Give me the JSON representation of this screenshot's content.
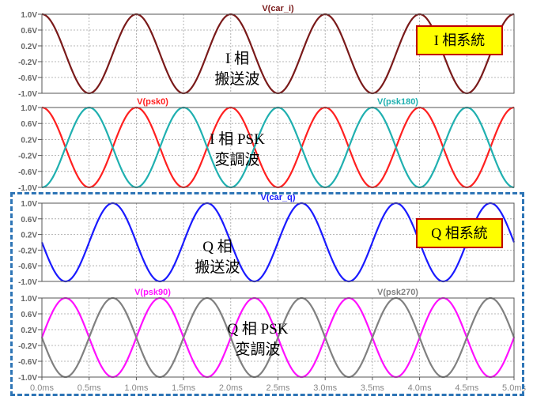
{
  "chart_data": [
    {
      "type": "line",
      "title": "V(car_i)",
      "ylim": [
        -1.0,
        1.0
      ],
      "yticks": [
        "1.0V",
        "0.6V",
        "0.2V",
        "-0.2V",
        "-0.6V",
        "-1.0V"
      ],
      "xlim": [
        0,
        5
      ],
      "grid": true,
      "series": [
        {
          "name": "V(car_i)",
          "color": "#7a1a1a",
          "amplitude": 1.0,
          "frequency_khz": 1.0,
          "phase_deg": 90
        }
      ]
    },
    {
      "type": "line",
      "ylim": [
        -1.0,
        1.0
      ],
      "yticks": [
        "1.0V",
        "0.6V",
        "0.2V",
        "-0.2V",
        "-0.6V",
        "-1.0V"
      ],
      "xlim": [
        0,
        5
      ],
      "grid": true,
      "series": [
        {
          "name": "V(psk0)",
          "color": "#ff2020",
          "amplitude": 1.0,
          "frequency_khz": 1.0,
          "phase_deg": 90
        },
        {
          "name": "V(psk180)",
          "color": "#20b0b0",
          "amplitude": 1.0,
          "frequency_khz": 1.0,
          "phase_deg": 270
        }
      ]
    },
    {
      "type": "line",
      "title": "V(car_q)",
      "ylim": [
        -1.0,
        1.0
      ],
      "yticks": [
        "1.0V",
        "0.6V",
        "0.2V",
        "-0.2V",
        "-0.6V",
        "-1.0V"
      ],
      "xlim": [
        0,
        5
      ],
      "grid": true,
      "series": [
        {
          "name": "V(car_q)",
          "color": "#1a1aff",
          "amplitude": 1.0,
          "frequency_khz": 1.0,
          "phase_deg": 180
        }
      ]
    },
    {
      "type": "line",
      "ylim": [
        -1.0,
        1.0
      ],
      "yticks": [
        "1.0V",
        "0.6V",
        "0.2V",
        "-0.2V",
        "-0.6V",
        "-1.0V"
      ],
      "xlim": [
        0,
        5
      ],
      "xticks": [
        "0.0ms",
        "0.5ms",
        "1.0ms",
        "1.5ms",
        "2.0ms",
        "2.5ms",
        "3.0ms",
        "3.5ms",
        "4.0ms",
        "4.5ms",
        "5.0ms"
      ],
      "grid": true,
      "series": [
        {
          "name": "V(psk90)",
          "color": "#ff10ff",
          "amplitude": 1.0,
          "frequency_khz": 1.0,
          "phase_deg": 0
        },
        {
          "name": "V(psk270)",
          "color": "#808080",
          "amplitude": 1.0,
          "frequency_khz": 1.0,
          "phase_deg": 180
        }
      ]
    }
  ],
  "annotations": {
    "i_system": "I 相系統",
    "q_system": "Q 相系統",
    "i_carrier_line1": "I 相",
    "i_carrier_line2": "搬送波",
    "i_psk_line1": "I 相 PSK",
    "i_psk_line2": "変調波",
    "q_carrier_line1": "Q 相",
    "q_carrier_line2": "搬送波",
    "q_psk_line1": "Q 相 PSK",
    "q_psk_line2": "変調波"
  },
  "colors": {
    "q_frame": "#2e75b6",
    "label_box_fill": "#ffff00",
    "label_box_border": "#c00000",
    "axis_text": "#888888"
  }
}
